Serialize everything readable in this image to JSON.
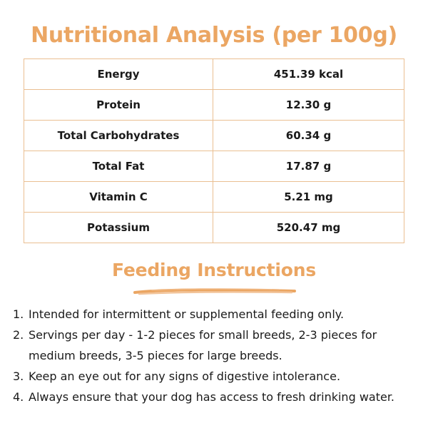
{
  "theme": {
    "accent": "#eba663",
    "border": "#eabf92"
  },
  "nutrition": {
    "title": "Nutritional Analysis (per 100g)",
    "rows": [
      {
        "label": "Energy",
        "value": "451.39 kcal"
      },
      {
        "label": "Protein",
        "value": "12.30 g"
      },
      {
        "label": "Total Carbohydrates",
        "value": "60.34 g"
      },
      {
        "label": "Total Fat",
        "value": "17.87 g"
      },
      {
        "label": "Vitamin C",
        "value": "5.21 mg"
      },
      {
        "label": "Potassium",
        "value": "520.47 mg"
      }
    ]
  },
  "feeding": {
    "title": "Feeding Instructions",
    "steps": [
      {
        "num": "1.",
        "text": "Intended for intermittent or supplemental feeding only."
      },
      {
        "num": "2.",
        "text": "Servings per day - 1-2 pieces for small breeds, 2-3 pieces for medium breeds, 3-5 pieces for large breeds."
      },
      {
        "num": "3.",
        "text": "Keep an eye out for any signs of digestive intolerance."
      },
      {
        "num": "4.",
        "text": "Always ensure that your dog has access to fresh drinking water."
      }
    ]
  }
}
